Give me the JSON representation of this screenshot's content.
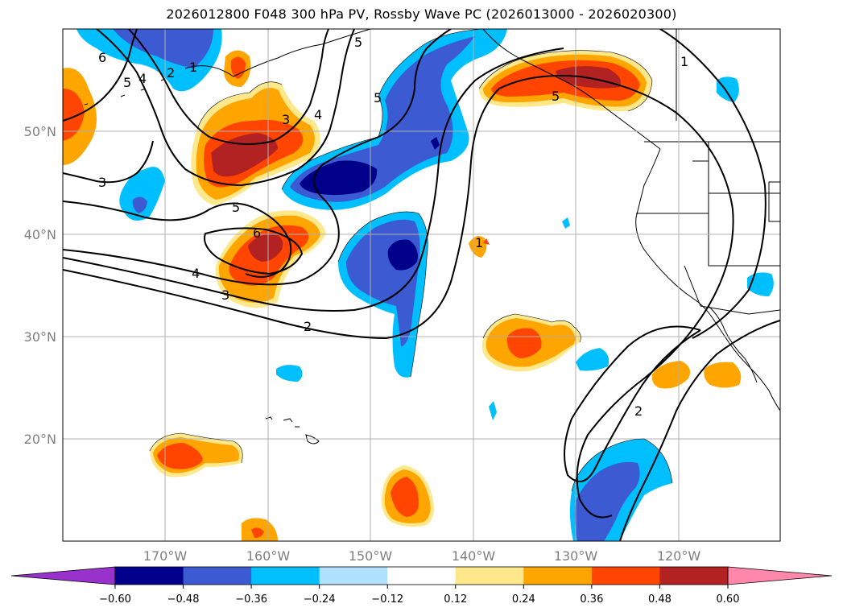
{
  "title": "2026012800 F048 300 hPa PV, Rossby Wave PC (2026013000 - 2026020300)",
  "lat_labels": [
    "50°N",
    "40°N",
    "30°N",
    "20°N"
  ],
  "lon_labels": [
    "170°W",
    "160°W",
    "150°W",
    "140°W",
    "130°W",
    "120°W"
  ],
  "colorbar": {
    "ticks": [
      "−0.60",
      "−0.48",
      "−0.36",
      "−0.24",
      "−0.12",
      "0.12",
      "0.24",
      "0.36",
      "0.48",
      "0.60"
    ],
    "colors": [
      "#9932cc",
      "#00008b",
      "#3c5ad2",
      "#00bfff",
      "#b0e2ff",
      "#ffffff",
      "#ffe88c",
      "#ffa500",
      "#ff4500",
      "#b22222",
      "#ff88aa"
    ]
  },
  "contour_labels": [
    "6",
    "5",
    "4",
    "2",
    "1",
    "3",
    "4",
    "5",
    "5",
    "3",
    "5",
    "6",
    "4",
    "3",
    "2",
    "1",
    "1",
    "2",
    "5"
  ]
}
